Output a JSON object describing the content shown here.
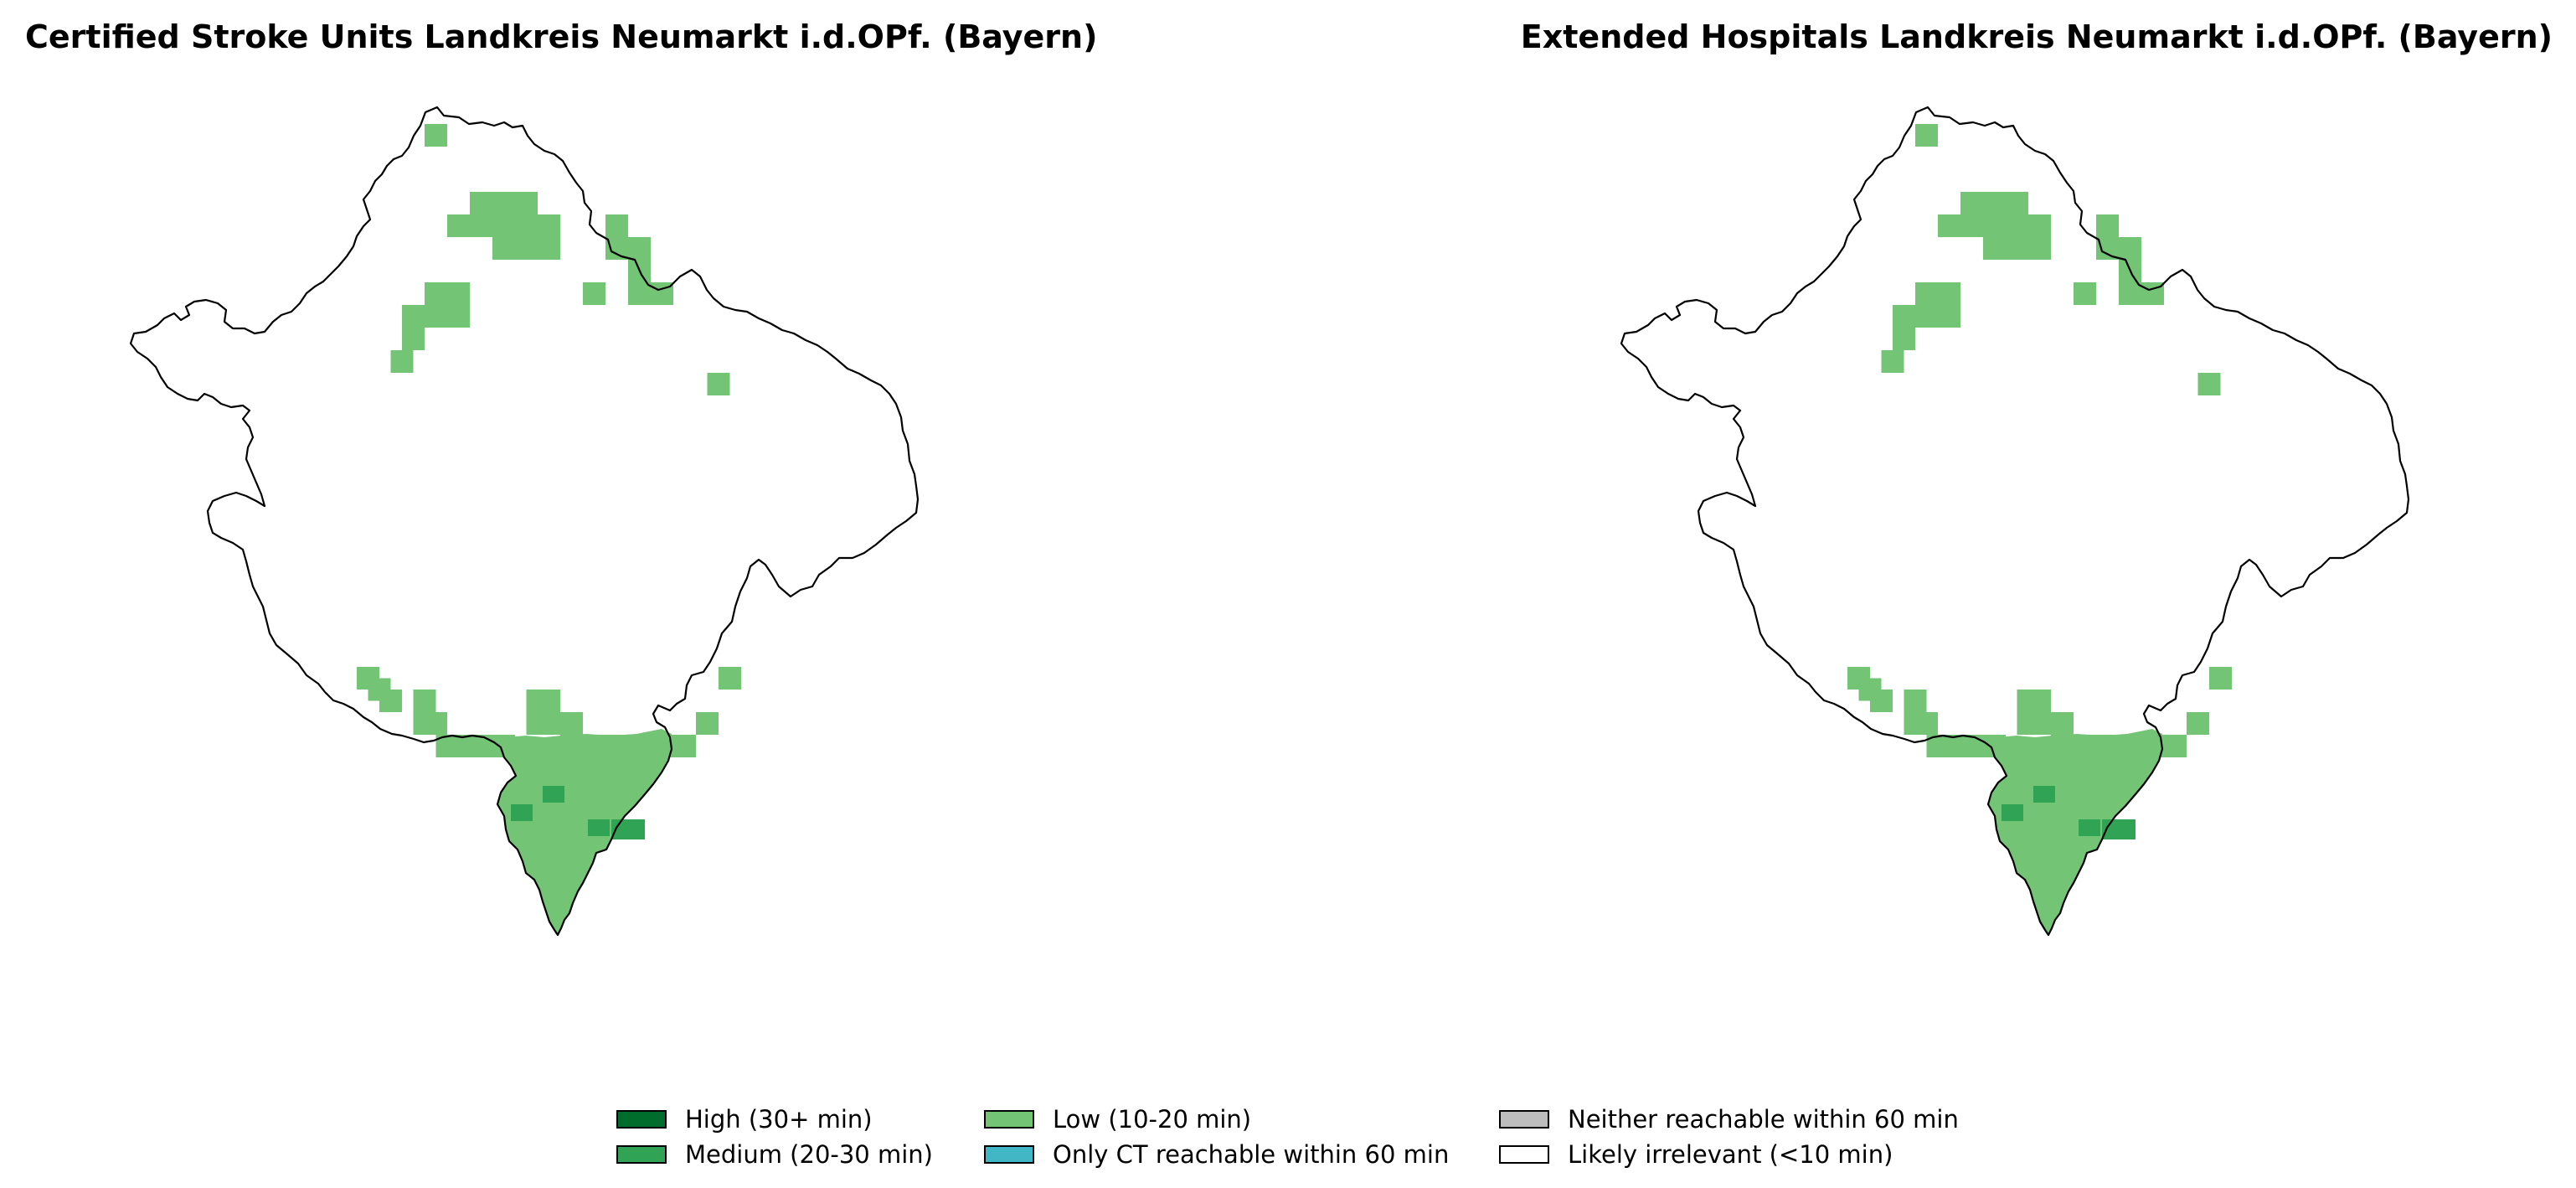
{
  "titles": {
    "left": "Certified Stroke Units Landkreis Neumarkt i.d.OPf. (Bayern)",
    "right": "Extended Hospitals Landkreis Neumarkt i.d.OPf. (Bayern)"
  },
  "legend": [
    {
      "label": "High (30+ min)",
      "color": "#006d2c"
    },
    {
      "label": "Medium (20-30 min)",
      "color": "#31a354"
    },
    {
      "label": "Low (10-20 min)",
      "color": "#74c476"
    },
    {
      "label": "Only CT reachable within 60 min",
      "color": "#41b6c4"
    },
    {
      "label": "Neither reachable within 60 min",
      "color": "#bdbdbd"
    },
    {
      "label": "Likely irrelevant (<10 min)",
      "color": "#ffffff"
    }
  ],
  "colors": {
    "boundary": "#000000",
    "low": "#74c476",
    "medium": "#31a354",
    "high": "#006d2c"
  }
}
